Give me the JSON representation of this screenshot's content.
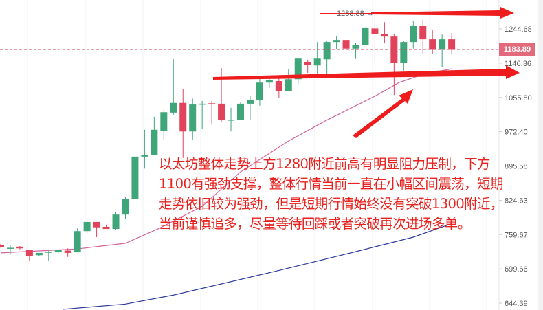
{
  "chart_data": {
    "type": "candlestick",
    "y_scale": "log",
    "ylim": [
      635,
      1300
    ],
    "grid": true,
    "colors": {
      "up": "#3fa67a",
      "down": "#e0435a",
      "ma_fast": "#d4639c",
      "ma_slow": "#2a3a9a",
      "annotation": "#ee1c1c",
      "last_price_bg": "#e26a7c"
    },
    "y_ticks": [
      "1244.68",
      "1146.36",
      "1055.80",
      "972.40",
      "895.58",
      "824.63",
      "759.67",
      "699.66",
      "644.39"
    ],
    "last_price": "1183.89",
    "high_marker": "1288.88 →",
    "candles": [
      [
        741,
        743,
        736,
        737
      ],
      [
        735,
        741,
        724,
        736
      ],
      [
        738,
        739,
        733,
        735
      ],
      [
        732,
        733,
        713,
        722
      ],
      [
        723,
        725,
        722,
        727
      ],
      [
        728,
        731,
        713,
        729
      ],
      [
        728,
        729,
        727,
        732
      ],
      [
        731,
        735,
        720,
        727
      ],
      [
        728,
        771,
        728,
        766
      ],
      [
        766,
        785,
        762,
        783
      ],
      [
        783,
        783,
        755,
        773
      ],
      [
        774,
        778,
        770,
        770
      ],
      [
        770,
        802,
        768,
        797
      ],
      [
        797,
        831,
        789,
        828
      ],
      [
        828,
        916,
        825,
        916
      ],
      [
        916,
        977,
        890,
        919
      ],
      [
        919,
        1008,
        919,
        977
      ],
      [
        975,
        1024,
        953,
        1019
      ],
      [
        1018,
        1157,
        1013,
        1042
      ],
      [
        1042,
        1078,
        913,
        973
      ],
      [
        973,
        1053,
        954,
        1038
      ],
      [
        1038,
        1047,
        978,
        1040
      ],
      [
        1041,
        1047,
        991,
        1040
      ],
      [
        1040,
        1133,
        995,
        1000
      ],
      [
        1000,
        1030,
        973,
        1001
      ],
      [
        1001,
        1045,
        1000,
        1040
      ],
      [
        1040,
        1061,
        1000,
        1050
      ],
      [
        1050,
        1105,
        1035,
        1094
      ],
      [
        1094,
        1110,
        1080,
        1101
      ],
      [
        1098,
        1105,
        1055,
        1072
      ],
      [
        1072,
        1131,
        1072,
        1103
      ],
      [
        1103,
        1163,
        1091,
        1159
      ],
      [
        1150,
        1156,
        1120,
        1142
      ],
      [
        1140,
        1206,
        1113,
        1159
      ],
      [
        1157,
        1208,
        1116,
        1206
      ],
      [
        1206,
        1222,
        1185,
        1212
      ],
      [
        1212,
        1216,
        1185,
        1187
      ],
      [
        1187,
        1204,
        1158,
        1198
      ],
      [
        1198,
        1247,
        1198,
        1247
      ],
      [
        1246,
        1290,
        1150,
        1230
      ],
      [
        1230,
        1265,
        1202,
        1222
      ],
      [
        1222,
        1230,
        1062,
        1148
      ],
      [
        1148,
        1210,
        1126,
        1206
      ],
      [
        1206,
        1268,
        1187,
        1253
      ],
      [
        1253,
        1272,
        1171,
        1214
      ],
      [
        1214,
        1241,
        1173,
        1184
      ],
      [
        1184,
        1228,
        1135,
        1214
      ],
      [
        1214,
        1232,
        1171,
        1183.89
      ]
    ],
    "ma_fast": [
      [
        0,
        727
      ],
      [
        8,
        734
      ],
      [
        13,
        744
      ],
      [
        16.5,
        771
      ],
      [
        21,
        813
      ],
      [
        25,
        883
      ],
      [
        30,
        951
      ],
      [
        34,
        1000
      ],
      [
        39,
        1059
      ],
      [
        41.5,
        1094
      ],
      [
        44,
        1116
      ],
      [
        47,
        1131
      ]
    ],
    "ma_slow": [
      [
        6.5,
        635
      ],
      [
        13,
        643
      ],
      [
        18,
        657
      ],
      [
        29,
        697
      ],
      [
        36,
        725
      ],
      [
        43,
        755
      ],
      [
        47,
        780
      ]
    ]
  },
  "annotation": {
    "lines": [
      "以太坊整体走势上方1280附近前高有明显阻力压制，下方",
      "1100有强劲支撑，整体行情当前一直在小幅区间震荡，短期",
      "走势依旧较为强劲，但是短期行情始终没有突破1300附近，",
      "当前谨慎追多，尽量等待回踩或者突破再次进场多单。"
    ]
  }
}
